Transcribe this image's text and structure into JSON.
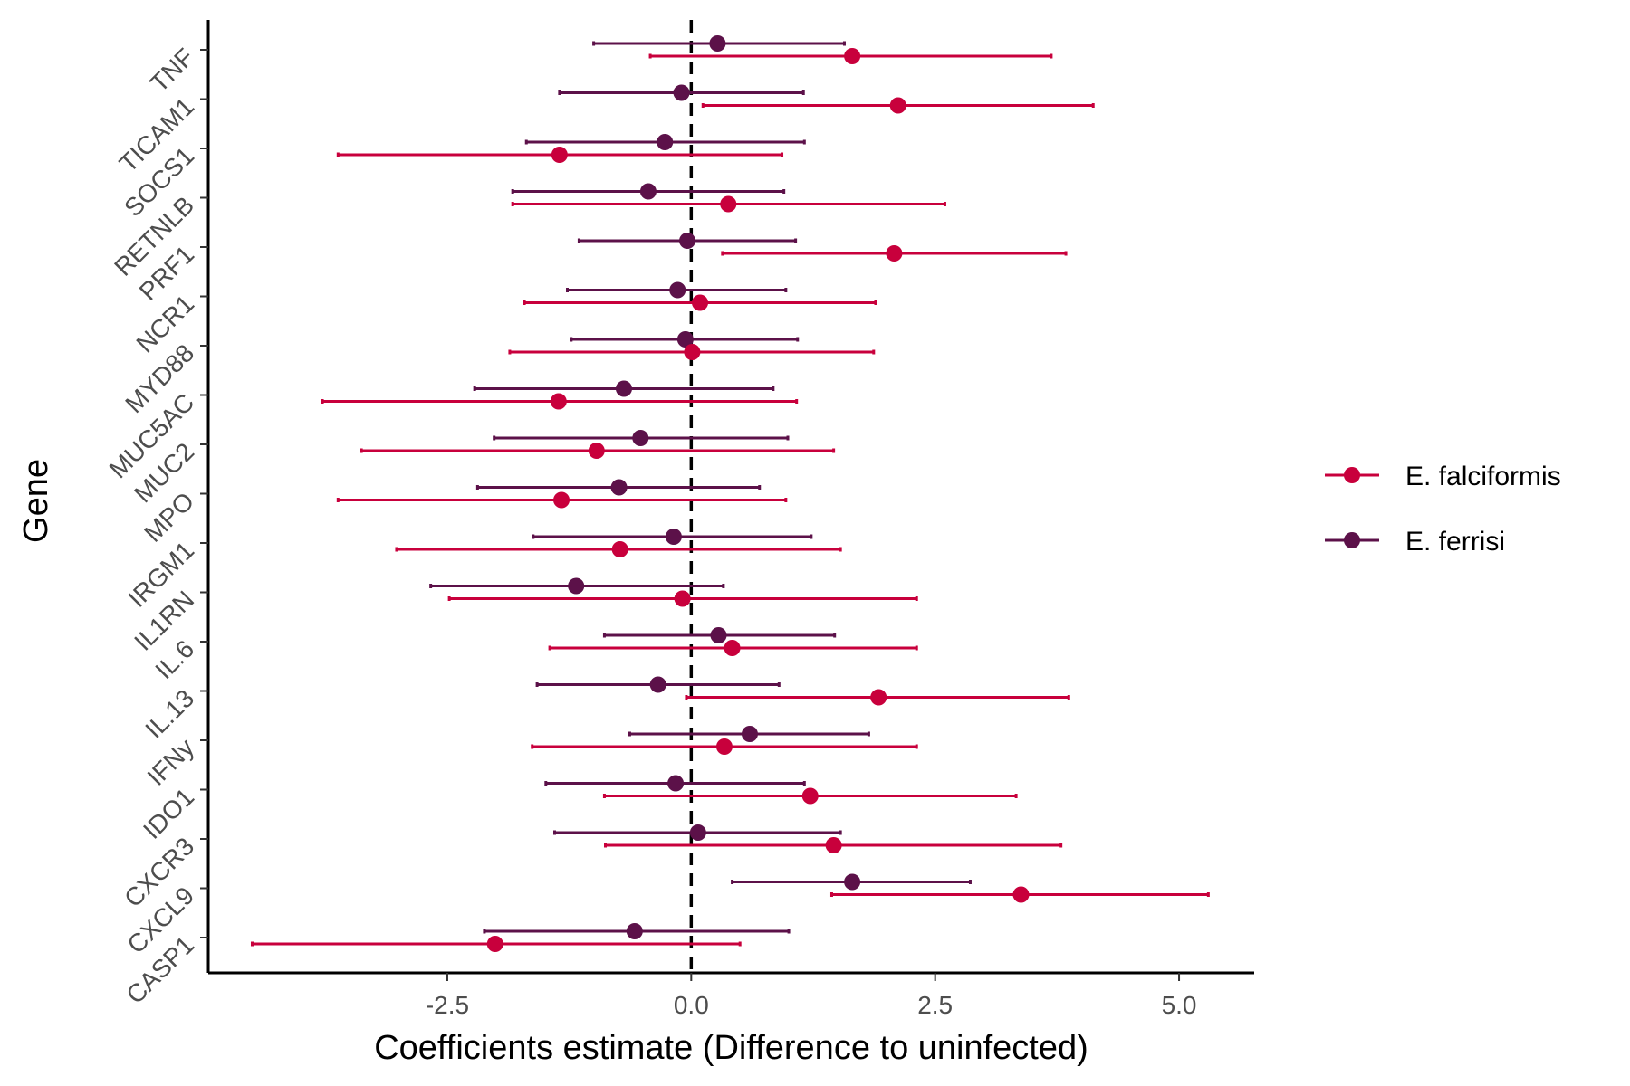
{
  "chart_data": {
    "type": "scatter",
    "subtype": "dot-and-whisker",
    "title": "",
    "xlabel": "Coefficients estimate (Difference to uninfected)",
    "ylabel": "Gene",
    "xlim": [
      -4.95,
      5.77
    ],
    "xticks": [
      -2.5,
      0.0,
      2.5,
      5.0
    ],
    "xtick_labels": [
      "-2.5",
      "0.0",
      "2.5",
      "5.0"
    ],
    "reference_line": {
      "x": 0,
      "style": "dashed"
    },
    "grid": false,
    "legend_position": "right",
    "categories": [
      "TNF",
      "TICAM1",
      "SOCS1",
      "RETNLB",
      "PRF1",
      "NCR1",
      "MYD88",
      "MUC5AC",
      "MUC2",
      "MPO",
      "IRGM1",
      "IL1RN",
      "IL.6",
      "IL.13",
      "IFNy",
      "IDO1",
      "CXCR3",
      "CXCL9",
      "CASP1"
    ],
    "series": [
      {
        "name": "E. falciformis",
        "color": "#c8003c",
        "estimate": [
          1.65,
          2.12,
          -1.35,
          0.38,
          2.08,
          0.09,
          0.01,
          -1.36,
          -0.97,
          -1.33,
          -0.73,
          -0.09,
          0.42,
          1.92,
          0.34,
          1.22,
          1.46,
          3.38,
          -2.01
        ],
        "lower": [
          -0.42,
          0.12,
          -3.62,
          -1.83,
          0.32,
          -1.71,
          -1.86,
          -3.78,
          -3.38,
          -3.62,
          -3.02,
          -2.48,
          -1.45,
          -0.05,
          -1.63,
          -0.89,
          -0.88,
          1.44,
          -4.5
        ],
        "upper": [
          3.69,
          4.12,
          0.93,
          2.6,
          3.84,
          1.89,
          1.87,
          1.08,
          1.46,
          0.97,
          1.53,
          2.31,
          2.31,
          3.87,
          2.31,
          3.33,
          3.79,
          5.3,
          0.5
        ]
      },
      {
        "name": "E. ferrisi",
        "color": "#5c1149",
        "estimate": [
          0.27,
          -0.1,
          -0.27,
          -0.44,
          -0.04,
          -0.14,
          -0.06,
          -0.69,
          -0.52,
          -0.74,
          -0.18,
          -1.18,
          0.28,
          -0.34,
          0.6,
          -0.16,
          0.07,
          1.65,
          -0.58
        ],
        "lower": [
          -1.0,
          -1.35,
          -1.69,
          -1.83,
          -1.15,
          -1.27,
          -1.23,
          -2.22,
          -2.02,
          -2.19,
          -1.62,
          -2.67,
          -0.89,
          -1.58,
          -0.63,
          -1.49,
          -1.4,
          0.42,
          -2.12
        ],
        "upper": [
          1.57,
          1.15,
          1.16,
          0.95,
          1.07,
          0.97,
          1.09,
          0.84,
          0.99,
          0.7,
          1.23,
          0.33,
          1.47,
          0.9,
          1.82,
          1.16,
          1.53,
          2.86,
          1.0
        ]
      }
    ]
  }
}
